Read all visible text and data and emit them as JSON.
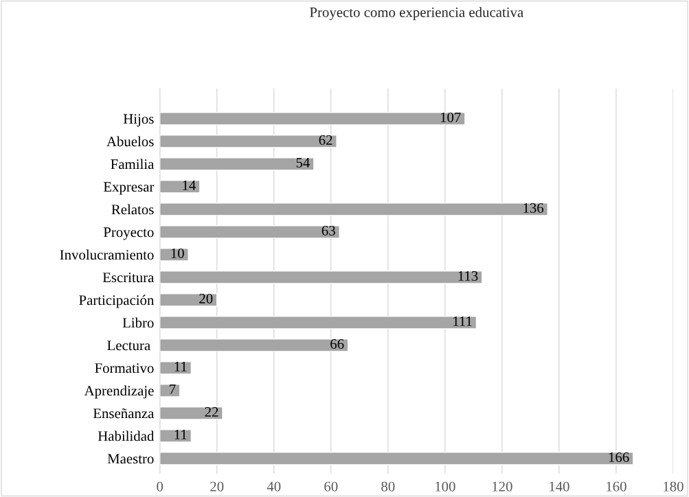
{
  "chart_data": {
    "type": "bar",
    "orientation": "horizontal",
    "title": "Proyecto como experiencia educativa",
    "categories": [
      "Hijos",
      "Abuelos",
      "Familia",
      "Expresar",
      "Relatos",
      "Proyecto",
      "Involucramiento",
      "Escritura",
      "Participación",
      "Libro",
      "Lectura ",
      "Formativo",
      "Aprendizaje",
      "Enseñanza",
      "Habilidad",
      "Maestro"
    ],
    "values": [
      107,
      62,
      54,
      14,
      136,
      63,
      10,
      113,
      20,
      111,
      66,
      11,
      7,
      22,
      11,
      166
    ],
    "color": "#a5a5a5",
    "xlim": [
      0,
      180
    ],
    "xticks": [
      0,
      20,
      40,
      60,
      80,
      100,
      120,
      140,
      160,
      180
    ],
    "grid": "x",
    "data_labels": true
  }
}
